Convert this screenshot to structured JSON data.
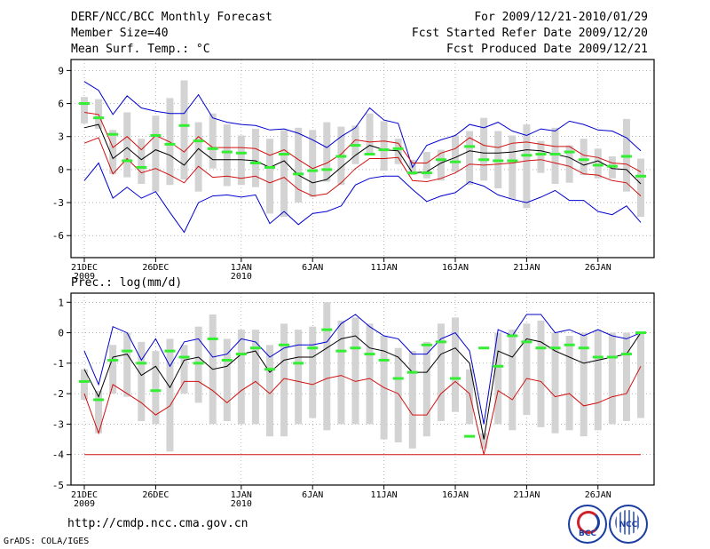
{
  "header": {
    "title": "DERF/NCC/BCC Monthly Forecast",
    "member": "Member Size=40",
    "variable": "Mean Surf. Temp.: °C",
    "period": "For 2009/12/21-2010/01/29",
    "started": "Fcst Started Refer Date 2009/12/20",
    "produced": "Fcst Produced Date 2009/12/21"
  },
  "footer": {
    "url": "http://cmdp.ncc.cma.gov.cn",
    "grads": "GrADS: COLA/IGES",
    "logo_bcc": "BCC",
    "logo_ncc": "NCC"
  },
  "colors": {
    "box": "#d3d3d3",
    "mean": "#000000",
    "sd": "#d01010",
    "extreme": "#0000d0",
    "median": "#33ee33",
    "grid": "#888888"
  },
  "chart_data": [
    {
      "type": "line",
      "panel_label": "",
      "x_ticks": [
        "21DEC",
        "26DEC",
        "1JAN",
        "6JAN",
        "11JAN",
        "16JAN",
        "21JAN",
        "26JAN"
      ],
      "x_tick_days": [
        0,
        5,
        11,
        16,
        21,
        26,
        31,
        36
      ],
      "x_year_labels": [
        {
          "day": 0,
          "label": "2009"
        },
        {
          "day": 11,
          "label": "2010"
        }
      ],
      "ylim": [
        -8,
        10
      ],
      "yticks": [
        -6,
        -3,
        0,
        3,
        6,
        9
      ],
      "days": 40,
      "series": [
        {
          "name": "max",
          "values": [
            8.0,
            7.2,
            5.0,
            6.7,
            5.6,
            5.3,
            5.1,
            5.1,
            6.8,
            4.7,
            4.3,
            4.1,
            4.0,
            3.6,
            3.7,
            3.3,
            2.7,
            2.0,
            3.0,
            3.8,
            5.6,
            4.5,
            4.2,
            0.2,
            2.2,
            2.7,
            3.1,
            4.1,
            3.8,
            4.3,
            3.5,
            3.1,
            3.7,
            3.5,
            4.4,
            4.1,
            3.6,
            3.5,
            2.9,
            1.7
          ]
        },
        {
          "name": "plus_sd",
          "values": [
            5.2,
            5.0,
            2.0,
            3.0,
            1.8,
            3.1,
            2.5,
            1.6,
            3.0,
            2.0,
            2.0,
            2.0,
            1.9,
            1.3,
            1.8,
            0.9,
            0.1,
            0.6,
            1.4,
            2.7,
            2.5,
            2.6,
            2.4,
            0.6,
            0.6,
            1.5,
            1.9,
            2.9,
            2.2,
            2.0,
            2.4,
            2.5,
            2.3,
            2.1,
            2.1,
            1.3,
            1.1,
            0.6,
            0.5,
            -0.2
          ]
        },
        {
          "name": "mean",
          "values": [
            3.8,
            4.1,
            1.0,
            2.0,
            0.9,
            1.8,
            1.3,
            0.4,
            1.9,
            0.9,
            0.9,
            0.9,
            0.8,
            0.2,
            0.8,
            -0.5,
            -1.2,
            -0.9,
            0.2,
            1.3,
            2.2,
            1.8,
            1.7,
            -0.3,
            -0.2,
            0.6,
            1.1,
            1.7,
            1.5,
            1.5,
            1.6,
            1.8,
            1.7,
            1.4,
            1.1,
            0.4,
            0.8,
            0.1,
            0.0,
            -1.3
          ]
        },
        {
          "name": "minus_sd",
          "values": [
            2.4,
            2.9,
            -0.4,
            1.0,
            -0.3,
            0.1,
            -0.5,
            -1.2,
            0.3,
            -0.7,
            -0.6,
            -0.8,
            -0.6,
            -1.2,
            -0.7,
            -1.8,
            -2.4,
            -2.2,
            -1.2,
            0.1,
            1.0,
            1.0,
            1.1,
            -1.0,
            -1.1,
            -0.8,
            -0.3,
            0.5,
            0.4,
            0.5,
            0.6,
            0.8,
            0.9,
            0.6,
            0.3,
            -0.4,
            -0.5,
            -1.0,
            -1.2,
            -2.4
          ]
        },
        {
          "name": "min",
          "values": [
            -1.0,
            0.6,
            -2.6,
            -1.6,
            -2.6,
            -2.0,
            -3.9,
            -5.7,
            -3.0,
            -2.4,
            -2.3,
            -2.5,
            -2.3,
            -4.9,
            -3.8,
            -5.0,
            -4.0,
            -3.8,
            -3.3,
            -1.4,
            -0.8,
            -0.6,
            -0.6,
            -1.8,
            -2.9,
            -2.4,
            -2.1,
            -1.1,
            -1.5,
            -2.3,
            -2.7,
            -3.0,
            -2.5,
            -1.9,
            -2.8,
            -2.8,
            -3.8,
            -4.1,
            -3.3,
            -4.8
          ]
        },
        {
          "name": "median",
          "values": [
            6.0,
            4.7,
            3.2,
            0.8,
            0.2,
            3.1,
            2.3,
            4.0,
            2.6,
            1.9,
            1.6,
            1.5,
            0.6,
            0.2,
            1.4,
            -0.4,
            -0.1,
            0.0,
            1.2,
            2.2,
            1.4,
            1.8,
            1.9,
            -0.3,
            -0.3,
            0.9,
            0.7,
            2.1,
            0.9,
            0.8,
            0.8,
            1.3,
            1.4,
            1.4,
            1.6,
            0.9,
            0.4,
            0.3,
            1.2,
            -0.6
          ]
        }
      ],
      "box_low": [
        4.2,
        3.7,
        -0.4,
        -0.7,
        -1.3,
        -2.0,
        -1.4,
        -0.9,
        -2.0,
        0.1,
        -1.5,
        -1.4,
        -1.6,
        -4.0,
        -4.3,
        -3.0,
        -2.5,
        -1.1,
        -1.4,
        0.5,
        1.3,
        -0.1,
        0.5,
        -0.5,
        -0.8,
        -1.0,
        -0.2,
        -1.4,
        -1.0,
        -1.7,
        -2.7,
        -3.5,
        -0.3,
        -1.3,
        -1.2,
        -0.5,
        -0.8,
        -0.8,
        -2.0,
        -4.3
      ],
      "box_high": [
        6.6,
        6.4,
        3.6,
        5.2,
        2.8,
        4.9,
        6.5,
        8.1,
        4.3,
        5.1,
        4.1,
        3.1,
        3.7,
        2.8,
        3.6,
        3.8,
        3.6,
        4.3,
        3.9,
        4.0,
        5.1,
        4.4,
        2.8,
        0.9,
        1.6,
        1.8,
        3.1,
        3.5,
        4.7,
        3.5,
        3.1,
        4.1,
        2.6,
        3.8,
        2.2,
        2.8,
        1.9,
        1.2,
        4.6,
        1.0
      ]
    },
    {
      "type": "line",
      "panel_label": "Prec.: log(mm/d)",
      "x_ticks": [
        "21DEC",
        "26DEC",
        "1JAN",
        "6JAN",
        "11JAN",
        "16JAN",
        "21JAN",
        "26JAN"
      ],
      "x_tick_days": [
        0,
        5,
        11,
        16,
        21,
        26,
        31,
        36
      ],
      "x_year_labels": [
        {
          "day": 0,
          "label": "2009"
        },
        {
          "day": 11,
          "label": "2010"
        }
      ],
      "ylim": [
        -5,
        1.3
      ],
      "yticks": [
        -5,
        -4,
        -3,
        -2,
        -1,
        0,
        1
      ],
      "days": 40,
      "series": [
        {
          "name": "max",
          "values": [
            -0.6,
            -1.7,
            0.2,
            0.0,
            -0.9,
            -0.2,
            -1.1,
            -0.3,
            -0.2,
            -0.8,
            -0.7,
            -0.2,
            -0.3,
            -0.8,
            -0.5,
            -0.4,
            -0.4,
            -0.3,
            0.3,
            0.6,
            0.2,
            -0.1,
            -0.2,
            -0.7,
            -0.7,
            -0.2,
            0.0,
            -0.6,
            -3.0,
            0.1,
            -0.1,
            0.6,
            0.6,
            0.0,
            0.1,
            -0.1,
            0.1,
            -0.1,
            -0.2,
            0.0
          ]
        },
        {
          "name": "mean",
          "values": [
            -1.2,
            -2.1,
            -0.8,
            -0.7,
            -1.4,
            -1.1,
            -1.8,
            -0.9,
            -0.8,
            -1.2,
            -1.1,
            -0.7,
            -0.6,
            -1.3,
            -0.9,
            -0.8,
            -0.8,
            -0.5,
            -0.2,
            -0.1,
            -0.5,
            -0.6,
            -0.8,
            -1.3,
            -1.3,
            -0.7,
            -0.5,
            -1.0,
            -3.5,
            -0.6,
            -0.8,
            -0.2,
            -0.3,
            -0.6,
            -0.8,
            -1.0,
            -0.9,
            -0.8,
            -0.7,
            0.0
          ]
        },
        {
          "name": "minus_sd",
          "values": [
            -2.0,
            -3.3,
            -1.7,
            -2.0,
            -2.3,
            -2.7,
            -2.4,
            -1.6,
            -1.6,
            -1.9,
            -2.3,
            -1.9,
            -1.6,
            -2.0,
            -1.5,
            -1.6,
            -1.7,
            -1.5,
            -1.4,
            -1.6,
            -1.5,
            -1.8,
            -2.0,
            -2.7,
            -2.7,
            -2.0,
            -1.6,
            -2.0,
            -4.0,
            -1.9,
            -2.2,
            -1.5,
            -1.6,
            -2.1,
            -2.0,
            -2.4,
            -2.3,
            -2.1,
            -2.0,
            -1.1
          ]
        },
        {
          "name": "floor",
          "values": [
            -4.0,
            -4.0,
            -4.0,
            -4.0,
            -4.0,
            -4.0,
            -4.0,
            -4.0,
            -4.0,
            -4.0,
            -4.0,
            -4.0,
            -4.0,
            -4.0,
            -4.0,
            -4.0,
            -4.0,
            -4.0,
            -4.0,
            -4.0,
            -4.0,
            -4.0,
            -4.0,
            -4.0,
            -4.0,
            -4.0,
            -4.0,
            -4.0,
            -4.0,
            -4.0,
            -4.0,
            -4.0,
            -4.0,
            -4.0,
            -4.0,
            -4.0,
            -4.0,
            -4.0,
            -4.0,
            -4.0
          ]
        },
        {
          "name": "median",
          "values": [
            -1.6,
            -2.2,
            -0.9,
            -0.6,
            -1.0,
            -1.9,
            -0.6,
            -0.8,
            -1.0,
            -0.2,
            -0.9,
            -0.7,
            -0.5,
            -1.2,
            -0.4,
            -1.0,
            -0.5,
            0.1,
            -0.6,
            -0.5,
            -0.7,
            -0.9,
            -1.5,
            -1.3,
            -0.4,
            -0.3,
            -1.5,
            -3.4,
            -0.5,
            -1.1,
            -0.1,
            -0.3,
            -0.5,
            -0.5,
            -0.4,
            -0.5,
            -0.8,
            -0.8,
            -0.7,
            0.0
          ]
        }
      ],
      "box_low": [
        -2.2,
        -3.3,
        -2.0,
        -2.1,
        -2.9,
        -3.0,
        -3.9,
        -2.0,
        -2.3,
        -3.0,
        -2.9,
        -3.0,
        -3.0,
        -3.4,
        -3.4,
        -3.0,
        -2.8,
        -3.2,
        -3.0,
        -3.0,
        -3.0,
        -3.5,
        -3.6,
        -3.8,
        -3.4,
        -2.9,
        -2.6,
        -3.0,
        -3.8,
        -3.0,
        -3.2,
        -2.7,
        -3.1,
        -3.3,
        -3.2,
        -3.4,
        -3.2,
        -3.0,
        -2.9,
        -2.8
      ],
      "box_high": [
        -1.2,
        -1.9,
        -0.4,
        0.0,
        -0.3,
        -0.6,
        -0.2,
        -0.4,
        0.2,
        0.6,
        -0.2,
        0.1,
        0.1,
        -0.4,
        0.3,
        0.1,
        0.2,
        1.0,
        0.4,
        0.5,
        0.3,
        -0.1,
        -0.5,
        -0.6,
        -0.3,
        0.3,
        0.5,
        -1.2,
        -3.3,
        0.0,
        0.1,
        0.3,
        0.4,
        0.0,
        -0.1,
        0.0,
        0.1,
        0.0,
        0.0,
        0.0
      ]
    }
  ]
}
